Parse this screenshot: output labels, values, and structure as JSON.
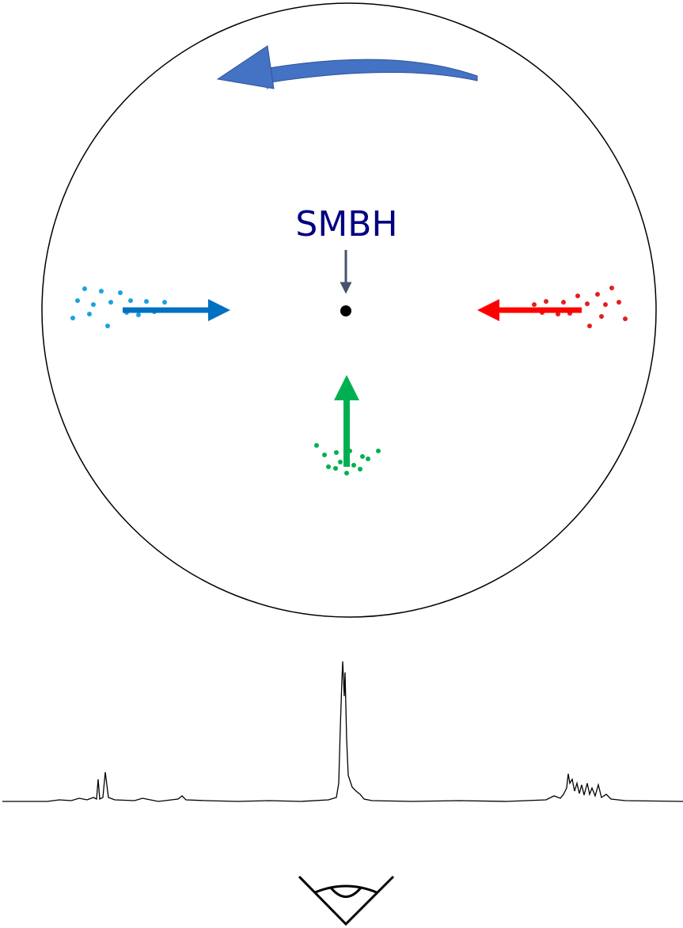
{
  "labels": {
    "smbh": "SMBH"
  }
}
